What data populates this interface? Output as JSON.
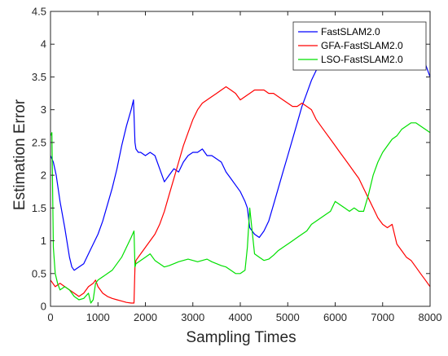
{
  "chart_data": {
    "type": "line",
    "xlabel": "Sampling Times",
    "ylabel": "Estimation Error",
    "xlim": [
      0,
      8000
    ],
    "ylim": [
      0,
      4.5
    ],
    "xticks": [
      "0",
      "1000",
      "2000",
      "3000",
      "4000",
      "5000",
      "6000",
      "7000",
      "8000"
    ],
    "yticks": [
      "0",
      "0.5",
      "1",
      "1.5",
      "2",
      "2.5",
      "3",
      "3.5",
      "4",
      "4.5"
    ],
    "grid": false,
    "legend_position": "top-right",
    "series": [
      {
        "name": "FastSLAM2.0",
        "color": "#0000ff",
        "x": [
          0,
          60,
          120,
          200,
          300,
          400,
          450,
          500,
          600,
          700,
          800,
          900,
          1000,
          1100,
          1200,
          1300,
          1400,
          1500,
          1600,
          1700,
          1750,
          1780,
          1800,
          1850,
          1900,
          2000,
          2100,
          2200,
          2300,
          2400,
          2500,
          2600,
          2700,
          2800,
          2900,
          3000,
          3100,
          3200,
          3300,
          3400,
          3500,
          3600,
          3700,
          3800,
          3900,
          4000,
          4100,
          4150,
          4200,
          4300,
          4400,
          4500,
          4600,
          4700,
          4800,
          4900,
          5000,
          5100,
          5200,
          5300,
          5400,
          5500,
          5600,
          5700,
          5800,
          5900,
          6000,
          6100,
          6200,
          6300,
          6400,
          6500,
          6600,
          6700,
          6800,
          6900,
          7000,
          7100,
          7200,
          7300,
          7400,
          7500,
          7600,
          7700,
          7800,
          7850,
          7900,
          7950,
          8000
        ],
        "y": [
          2.3,
          2.2,
          2.0,
          1.6,
          1.2,
          0.75,
          0.6,
          0.55,
          0.6,
          0.65,
          0.8,
          0.95,
          1.1,
          1.3,
          1.55,
          1.8,
          2.1,
          2.45,
          2.75,
          3.0,
          3.15,
          2.5,
          2.4,
          2.35,
          2.35,
          2.3,
          2.35,
          2.3,
          2.1,
          1.9,
          2.0,
          2.1,
          2.05,
          2.2,
          2.3,
          2.35,
          2.35,
          2.4,
          2.3,
          2.3,
          2.25,
          2.2,
          2.05,
          1.95,
          1.85,
          1.75,
          1.6,
          1.5,
          1.2,
          1.1,
          1.05,
          1.15,
          1.3,
          1.55,
          1.8,
          2.05,
          2.3,
          2.55,
          2.8,
          3.05,
          3.25,
          3.45,
          3.6,
          3.7,
          3.8,
          3.85,
          3.9,
          3.9,
          3.95,
          4.0,
          3.95,
          4.0,
          4.0,
          3.95,
          4.0,
          3.95,
          3.95,
          3.95,
          4.0,
          4.0,
          3.95,
          3.9,
          3.9,
          3.95,
          3.9,
          3.75,
          3.7,
          3.6,
          3.5
        ]
      },
      {
        "name": "GFA-FastSLAM2.0",
        "color": "#ff0000",
        "x": [
          0,
          100,
          200,
          300,
          400,
          500,
          600,
          700,
          800,
          900,
          950,
          1000,
          1100,
          1200,
          1300,
          1400,
          1500,
          1600,
          1700,
          1760,
          1780,
          1800,
          1900,
          2000,
          2100,
          2200,
          2300,
          2400,
          2500,
          2600,
          2700,
          2800,
          2900,
          3000,
          3100,
          3200,
          3300,
          3400,
          3500,
          3600,
          3700,
          3800,
          3900,
          4000,
          4100,
          4200,
          4300,
          4400,
          4500,
          4600,
          4700,
          4800,
          4900,
          5000,
          5100,
          5200,
          5300,
          5400,
          5500,
          5600,
          5700,
          5800,
          5900,
          6000,
          6100,
          6200,
          6300,
          6400,
          6500,
          6600,
          6700,
          6800,
          6900,
          7000,
          7100,
          7200,
          7250,
          7300,
          7400,
          7500,
          7600,
          7700,
          7800,
          7900,
          8000
        ],
        "y": [
          0.4,
          0.3,
          0.35,
          0.3,
          0.25,
          0.2,
          0.15,
          0.2,
          0.3,
          0.35,
          0.4,
          0.3,
          0.2,
          0.15,
          0.12,
          0.1,
          0.08,
          0.06,
          0.05,
          0.05,
          0.6,
          0.7,
          0.8,
          0.9,
          1.0,
          1.1,
          1.25,
          1.45,
          1.7,
          1.95,
          2.2,
          2.45,
          2.65,
          2.85,
          3.0,
          3.1,
          3.15,
          3.2,
          3.25,
          3.3,
          3.35,
          3.3,
          3.25,
          3.15,
          3.2,
          3.25,
          3.3,
          3.3,
          3.3,
          3.25,
          3.25,
          3.2,
          3.15,
          3.1,
          3.05,
          3.05,
          3.1,
          3.05,
          3.0,
          2.85,
          2.75,
          2.65,
          2.55,
          2.45,
          2.35,
          2.25,
          2.15,
          2.05,
          1.95,
          1.8,
          1.65,
          1.5,
          1.35,
          1.25,
          1.2,
          1.25,
          1.1,
          0.95,
          0.85,
          0.75,
          0.7,
          0.6,
          0.5,
          0.4,
          0.3
        ]
      },
      {
        "name": "LSO-FastSLAM2.0",
        "color": "#00e000",
        "x": [
          0,
          30,
          60,
          100,
          150,
          200,
          300,
          400,
          500,
          600,
          700,
          800,
          850,
          900,
          950,
          1000,
          1100,
          1200,
          1300,
          1400,
          1500,
          1600,
          1700,
          1760,
          1780,
          1800,
          1900,
          2000,
          2100,
          2200,
          2300,
          2400,
          2500,
          2600,
          2700,
          2800,
          2900,
          3000,
          3100,
          3200,
          3300,
          3400,
          3500,
          3600,
          3700,
          3800,
          3900,
          4000,
          4100,
          4150,
          4200,
          4300,
          4400,
          4500,
          4600,
          4700,
          4800,
          4900,
          5000,
          5100,
          5200,
          5300,
          5400,
          5500,
          5600,
          5700,
          5800,
          5900,
          6000,
          6100,
          6200,
          6300,
          6400,
          6500,
          6600,
          6700,
          6800,
          6900,
          7000,
          7100,
          7200,
          7300,
          7400,
          7500,
          7600,
          7700,
          7800,
          7900,
          8000
        ],
        "y": [
          2.6,
          2.65,
          0.9,
          0.5,
          0.35,
          0.25,
          0.3,
          0.25,
          0.15,
          0.1,
          0.12,
          0.2,
          0.05,
          0.1,
          0.35,
          0.4,
          0.45,
          0.5,
          0.55,
          0.65,
          0.75,
          0.9,
          1.05,
          1.15,
          0.6,
          0.65,
          0.7,
          0.75,
          0.8,
          0.7,
          0.65,
          0.6,
          0.62,
          0.65,
          0.68,
          0.7,
          0.72,
          0.7,
          0.68,
          0.7,
          0.72,
          0.68,
          0.65,
          0.62,
          0.6,
          0.55,
          0.5,
          0.5,
          0.55,
          0.9,
          1.5,
          0.8,
          0.75,
          0.7,
          0.72,
          0.78,
          0.85,
          0.9,
          0.95,
          1.0,
          1.05,
          1.1,
          1.15,
          1.25,
          1.3,
          1.35,
          1.4,
          1.45,
          1.6,
          1.55,
          1.5,
          1.45,
          1.5,
          1.45,
          1.45,
          1.7,
          2.0,
          2.2,
          2.35,
          2.45,
          2.55,
          2.6,
          2.7,
          2.75,
          2.8,
          2.8,
          2.75,
          2.7,
          2.65
        ]
      }
    ]
  }
}
